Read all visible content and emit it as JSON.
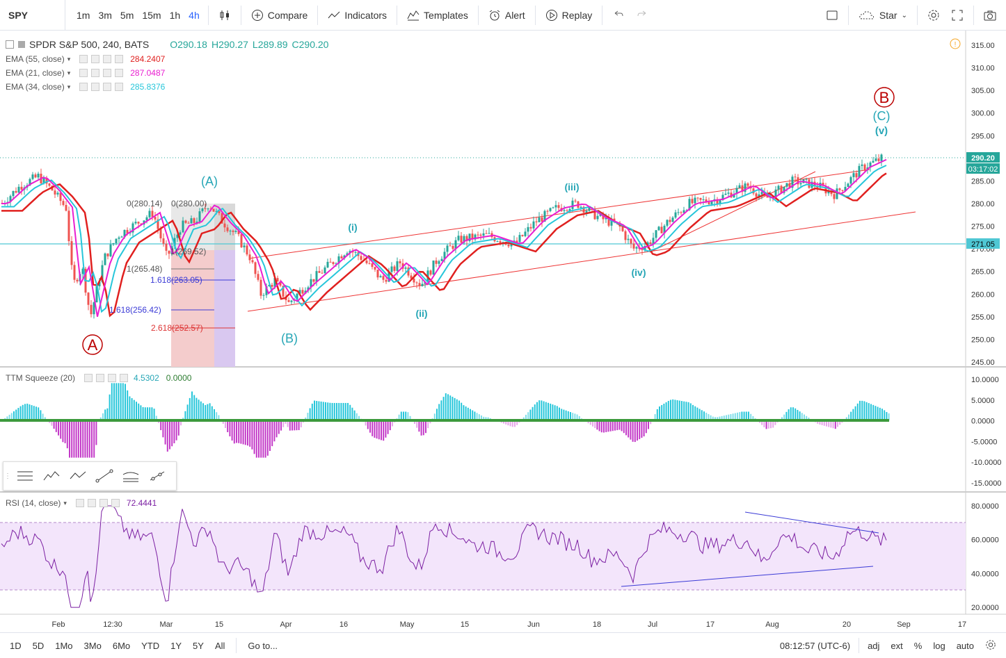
{
  "toolbar": {
    "symbol": "SPY",
    "timeframes": [
      "1m",
      "3m",
      "5m",
      "15m",
      "1h",
      "4h"
    ],
    "active_timeframe": "4h",
    "compare": "Compare",
    "indicators": "Indicators",
    "templates": "Templates",
    "alert": "Alert",
    "replay": "Replay",
    "star": "Star"
  },
  "legend": {
    "title": "SPDR S&P 500, 240, BATS",
    "o": "O290.18",
    "h": "H290.27",
    "l": "L289.89",
    "c": "C290.20"
  },
  "indicators": [
    {
      "name": "EMA (55, close)",
      "value": "284.2407",
      "color": "#e0201f"
    },
    {
      "name": "EMA (21, close)",
      "value": "287.0487",
      "color": "#e91ed1"
    },
    {
      "name": "EMA (34, close)",
      "value": "285.8376",
      "color": "#26c6da"
    }
  ],
  "price_axis": {
    "ticks": [
      "315.00",
      "310.00",
      "305.00",
      "300.00",
      "295.00",
      "290.00",
      "285.00",
      "280.00",
      "275.00",
      "270.00",
      "265.00",
      "260.00",
      "255.00",
      "250.00",
      "245.00"
    ],
    "last_price": "290.20",
    "countdown": "03:17:02",
    "hline_price": "271.05"
  },
  "ttm": {
    "label": "TTM Squeeze (20)",
    "v1": "4.5302",
    "v2": "0.0000",
    "ticks": [
      "10.0000",
      "5.0000",
      "0.0000",
      "-5.0000",
      "-10.0000",
      "-15.0000"
    ]
  },
  "rsi": {
    "label": "RSI (14, close)",
    "value": "72.4441",
    "ticks": [
      "80.0000",
      "60.0000",
      "40.0000",
      "20.0000"
    ]
  },
  "time_axis": [
    "Feb",
    "12:30",
    "Mar",
    "15",
    "Apr",
    "16",
    "May",
    "15",
    "Jun",
    "18",
    "Jul",
    "17",
    "Aug",
    "20",
    "Sep",
    "17"
  ],
  "fib": {
    "l0": "0(280.14)",
    "l0b": "0(280.00)",
    "l1": "1(269.52)",
    "l2": "1(265.48)",
    "l3": "1.618(263.05)",
    "l4": "1.618(256.42)",
    "l5": "2.618(252.57)"
  },
  "waves": {
    "A": "A",
    "B": "B",
    "C_big": "(C)",
    "v": "(v)",
    "iii": "(iii)",
    "i": "(i)",
    "ii": "(ii)",
    "iv": "(iv)",
    "A_paren": "(A)",
    "B_paren": "(B)"
  },
  "bottom_bar": {
    "ranges": [
      "1D",
      "5D",
      "1Mo",
      "3Mo",
      "6Mo",
      "YTD",
      "1Y",
      "5Y",
      "All"
    ],
    "goto": "Go to...",
    "time": "08:12:57 (UTC-6)",
    "adj": "adj",
    "ext": "ext",
    "pct": "%",
    "log": "log",
    "auto": "auto"
  }
}
